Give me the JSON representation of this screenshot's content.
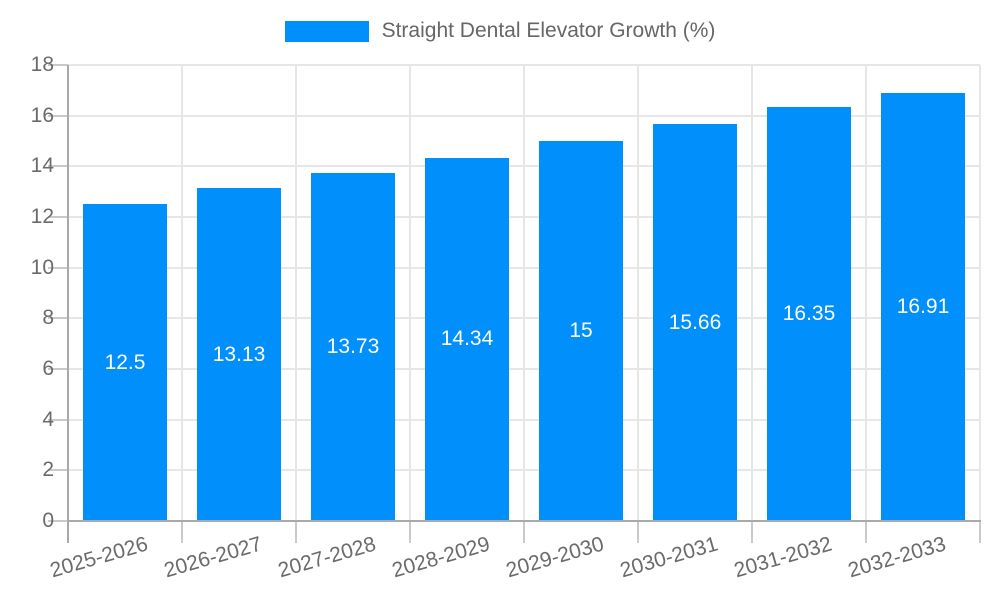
{
  "chart_data": {
    "type": "bar",
    "title": "",
    "xlabel": "",
    "ylabel": "",
    "legend": {
      "label": "Straight Dental Elevator Growth (%)",
      "position": "top"
    },
    "categories": [
      "2025-2026",
      "2026-2027",
      "2027-2028",
      "2028-2029",
      "2029-2030",
      "2030-2031",
      "2031-2032",
      "2032-2033"
    ],
    "series": [
      {
        "name": "Straight Dental Elevator Growth (%)",
        "values": [
          12.5,
          13.13,
          13.73,
          14.34,
          15,
          15.66,
          16.35,
          16.91
        ]
      }
    ],
    "value_labels": [
      "12.5",
      "13.13",
      "13.73",
      "14.34",
      "15",
      "15.66",
      "16.35",
      "16.91"
    ],
    "ylim": [
      0,
      18
    ],
    "ytick_step": 2,
    "ytick_labels": [
      "0",
      "2",
      "4",
      "6",
      "8",
      "10",
      "12",
      "14",
      "16",
      "18"
    ],
    "grid": true,
    "x_label_rotation_deg": -16,
    "colors": {
      "bar": "#008FFB",
      "bar_value_label": "#ffffff",
      "tick_label": "#6b6b6b",
      "legend_text": "#666666",
      "gridline": "#e6e6e6",
      "tick_mark": "#c9c9c9",
      "axis_line": "#a9a9a9"
    }
  }
}
